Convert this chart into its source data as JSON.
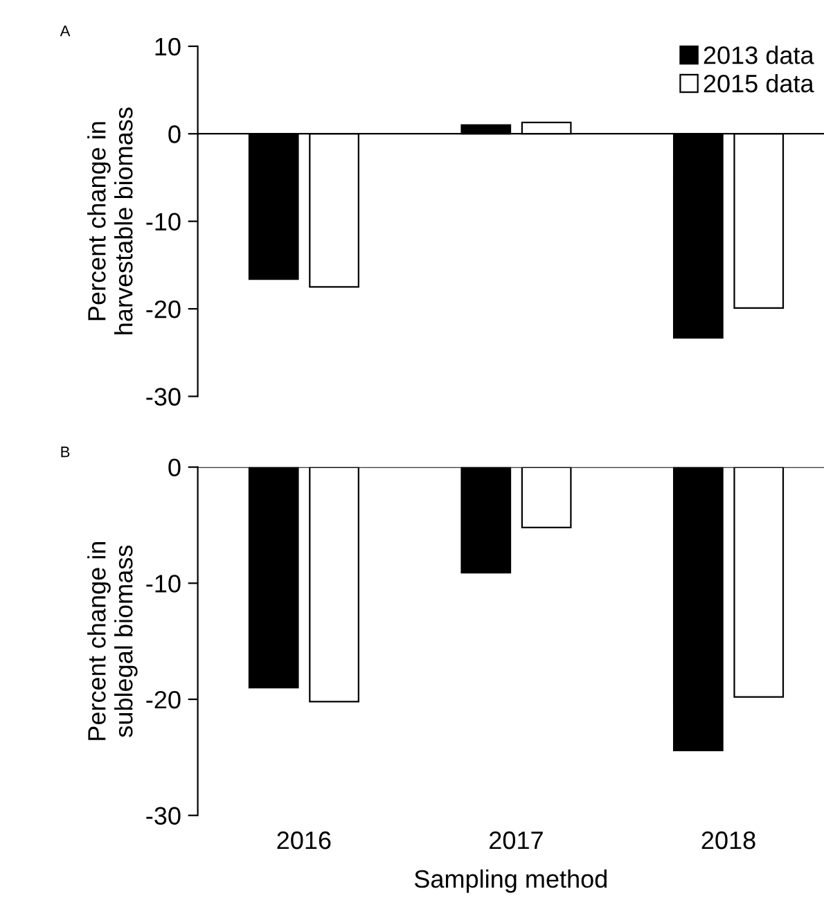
{
  "chart_data": [
    {
      "type": "bar",
      "title": "A",
      "ylabel": "Percent change in\nharvestable biomass",
      "categories": [
        "2016",
        "2017",
        "2018"
      ],
      "ylim": [
        -30,
        10
      ],
      "yticks": [
        -30,
        -20,
        -10,
        0,
        10
      ],
      "tick_labels": "y",
      "legend": "top right",
      "series": [
        {
          "name": "2013 data",
          "color": "#000000",
          "values": [
            -16.6,
            1.0,
            -23.3
          ]
        },
        {
          "name": "2015 data",
          "color": "#ffffff",
          "values": [
            -17.5,
            1.3,
            -19.9
          ]
        }
      ]
    },
    {
      "type": "bar",
      "title": "B",
      "ylabel": "Percent change in\nsublegal biomass",
      "xlabel": "Sampling method",
      "categories": [
        "2016",
        "2017",
        "2018"
      ],
      "ylim": [
        -30,
        0
      ],
      "yticks": [
        -30,
        -20,
        -10,
        0
      ],
      "series": [
        {
          "color": "#000000",
          "values": [
            -19.0,
            -9.1,
            -24.4
          ]
        },
        {
          "color": "#ffffff",
          "values": [
            -20.2,
            -5.2,
            -19.8
          ]
        }
      ]
    }
  ]
}
